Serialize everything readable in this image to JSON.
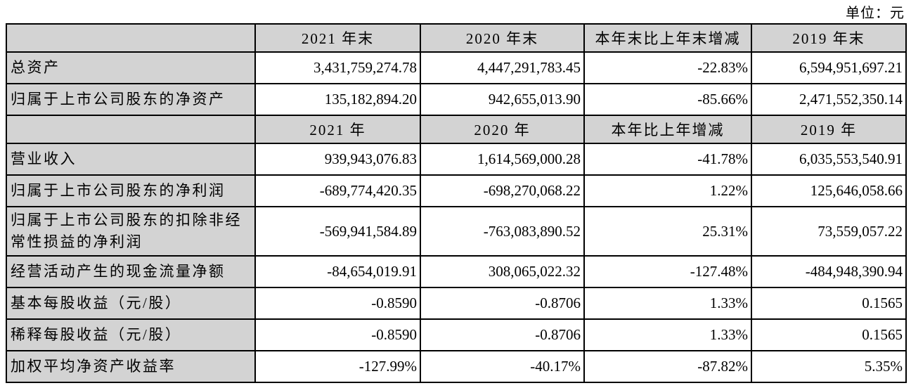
{
  "unit_label": "单位：元",
  "colors": {
    "header_bg": "#d3d3d3",
    "border": "#000000",
    "text": "#000000",
    "page_bg": "#ffffff"
  },
  "table": {
    "sections": [
      {
        "header": [
          "",
          "2021 年末",
          "2020 年末",
          "本年末比上年末增减",
          "2019 年末"
        ],
        "rows": [
          {
            "label": "总资产",
            "values": [
              "3,431,759,274.78",
              "4,447,291,783.45",
              "-22.83%",
              "6,594,951,697.21"
            ]
          },
          {
            "label": "归属于上市公司股东的净资产",
            "values": [
              "135,182,894.20",
              "942,655,013.90",
              "-85.66%",
              "2,471,552,350.14"
            ]
          }
        ]
      },
      {
        "header": [
          "",
          "2021 年",
          "2020 年",
          "本年比上年增减",
          "2019 年"
        ],
        "rows": [
          {
            "label": "营业收入",
            "values": [
              "939,943,076.83",
              "1,614,569,000.28",
              "-41.78%",
              "6,035,553,540.91"
            ]
          },
          {
            "label": "归属于上市公司股东的净利润",
            "values": [
              "-689,774,420.35",
              "-698,270,068.22",
              "1.22%",
              "125,646,058.66"
            ]
          },
          {
            "label": "归属于上市公司股东的扣除非经常性损益的净利润",
            "values": [
              "-569,941,584.89",
              "-763,083,890.52",
              "25.31%",
              "73,559,057.22"
            ]
          },
          {
            "label": "经营活动产生的现金流量净额",
            "values": [
              "-84,654,019.91",
              "308,065,022.32",
              "-127.48%",
              "-484,948,390.94"
            ]
          },
          {
            "label": "基本每股收益（元/股）",
            "values": [
              "-0.8590",
              "-0.8706",
              "1.33%",
              "0.1565"
            ]
          },
          {
            "label": "稀释每股收益（元/股）",
            "values": [
              "-0.8590",
              "-0.8706",
              "1.33%",
              "0.1565"
            ]
          },
          {
            "label": "加权平均净资产收益率",
            "values": [
              "-127.99%",
              "-40.17%",
              "-87.82%",
              "5.35%"
            ]
          }
        ]
      }
    ]
  }
}
